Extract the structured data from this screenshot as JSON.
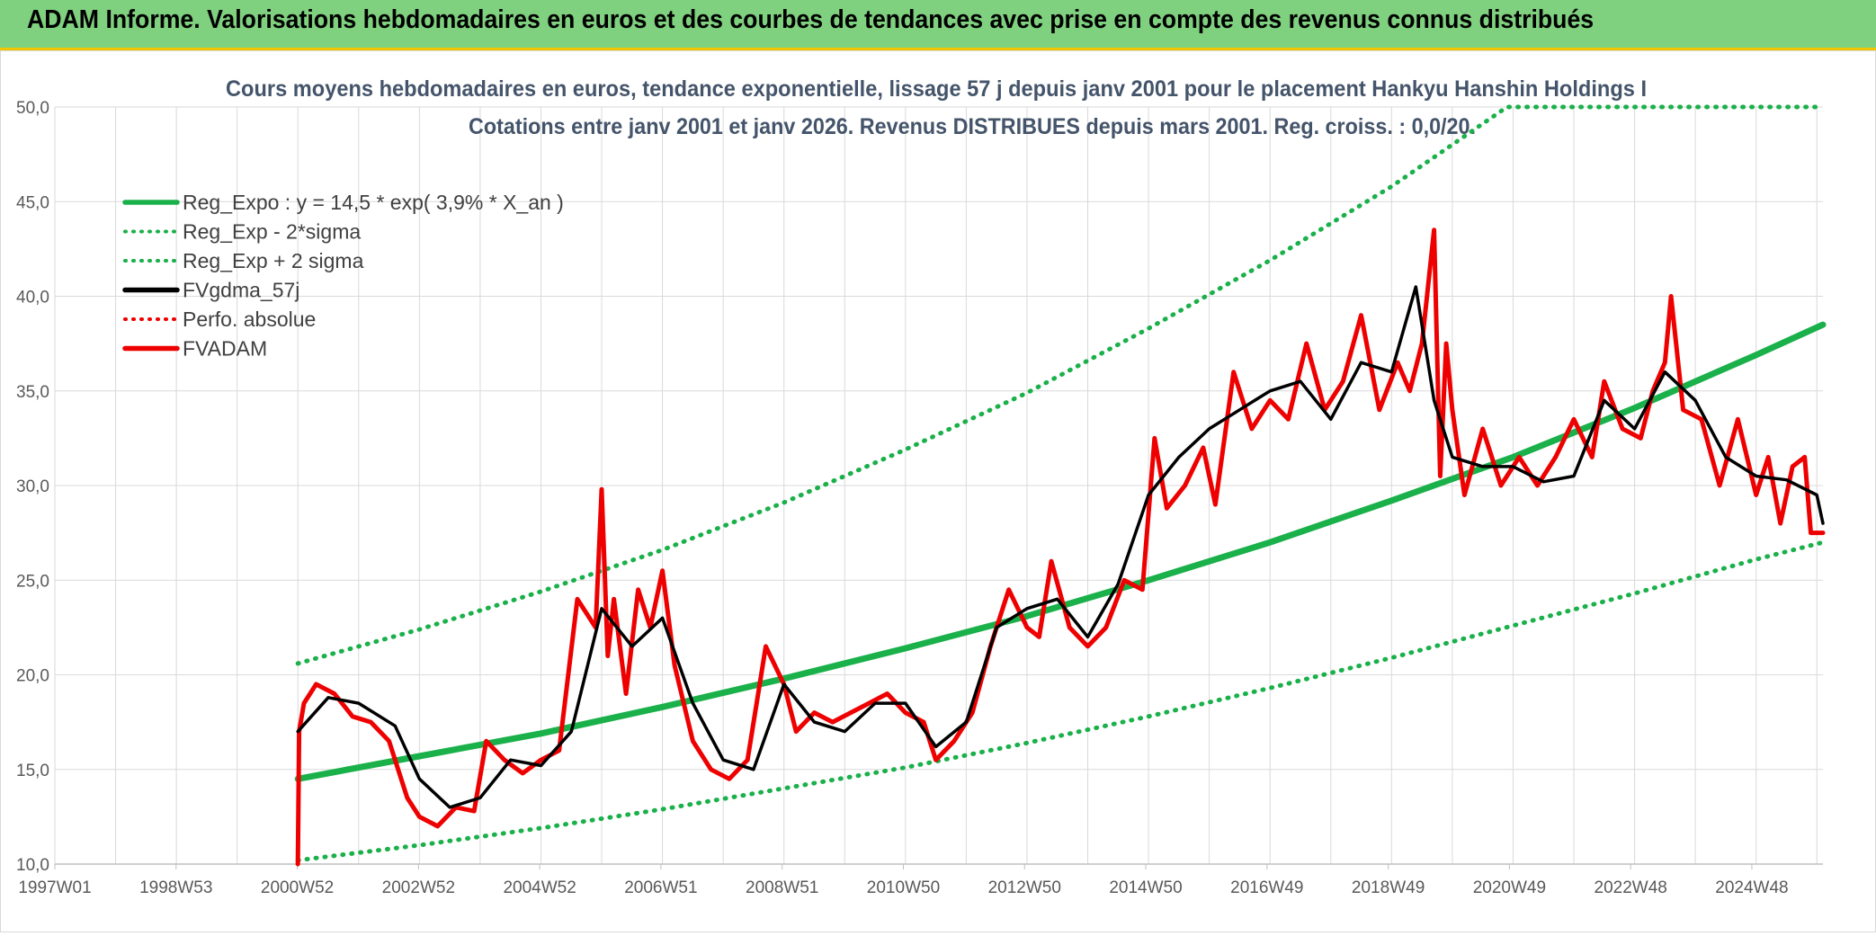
{
  "header": {
    "title": "ADAM Informe. Valorisations hebdomadaires en euros et des courbes de tendances avec prise en compte des revenus connus distribués"
  },
  "colors": {
    "banner": "#7fd07f",
    "banner_border": "#f3c400",
    "green": "#1ab04a",
    "red": "#ee0000",
    "black": "#000000",
    "grid": "#d9d9d9"
  },
  "chart_data": {
    "type": "line",
    "title": "Cours moyens hebdomadaires en euros, tendance exponentielle, lissage 57 j depuis janv 2001 pour le placement Hankyu Hanshin Holdings I",
    "subtitle": "Cotations entre janv 2001 et janv 2026. Revenus DISTRIBUES depuis mars 2001. Reg. croiss. : 0,0/20.",
    "xlabel": "",
    "ylabel": "",
    "x_tick_labels": [
      "1997W01",
      "1998W53",
      "2000W52",
      "2002W52",
      "2004W52",
      "2006W51",
      "2008W51",
      "2010W50",
      "2012W50",
      "2014W50",
      "2016W49",
      "2018W49",
      "2020W49",
      "2022W48",
      "2024W48"
    ],
    "x_range": [
      1997.0,
      2026.1
    ],
    "ylim": [
      10,
      50
    ],
    "y_ticks": [
      "10,0",
      "15,0",
      "20,0",
      "25,0",
      "30,0",
      "35,0",
      "40,0",
      "45,0",
      "50,0"
    ],
    "grid": true,
    "legend_position": "top-left",
    "legend": [
      {
        "label": "Reg_Expo : y = 14,5 * exp( 3,9% *  X_an )",
        "style": "solid",
        "color": "#1ab04a"
      },
      {
        "label": "Reg_Exp - 2*sigma",
        "style": "dotted",
        "color": "#1ab04a"
      },
      {
        "label": "Reg_Exp + 2 sigma",
        "style": "dotted",
        "color": "#1ab04a"
      },
      {
        "label": "FVgdma_57j",
        "style": "solid",
        "color": "#000000"
      },
      {
        "label": "Perfo. absolue",
        "style": "dotted",
        "color": "#ee0000"
      },
      {
        "label": "FVADAM",
        "style": "solid",
        "color": "#ee0000"
      }
    ],
    "series": [
      {
        "name": "Reg_Expo : y = 14,5 * exp( 3,9% *  X_an )",
        "x": [
          2001.0,
          2003.0,
          2005.0,
          2007.0,
          2009.0,
          2011.0,
          2013.0,
          2015.0,
          2017.0,
          2019.0,
          2021.0,
          2023.0,
          2025.0,
          2026.1
        ],
        "y": [
          14.5,
          15.7,
          16.9,
          18.3,
          19.8,
          21.4,
          23.1,
          25.0,
          27.0,
          29.2,
          31.5,
          34.1,
          36.9,
          38.5
        ]
      },
      {
        "name": "Reg_Exp - 2*sigma",
        "x": [
          2001.0,
          2003.0,
          2005.0,
          2007.0,
          2009.0,
          2011.0,
          2013.0,
          2015.0,
          2017.0,
          2019.0,
          2021.0,
          2023.0,
          2025.0,
          2026.1
        ],
        "y": [
          10.2,
          11.0,
          11.9,
          12.9,
          14.0,
          15.1,
          16.4,
          17.8,
          19.3,
          20.9,
          22.6,
          24.3,
          26.1,
          27.0
        ]
      },
      {
        "name": "Reg_Exp + 2 sigma",
        "x": [
          2001.0,
          2003.0,
          2005.0,
          2007.0,
          2009.0,
          2011.0,
          2013.0,
          2015.0,
          2017.0,
          2019.0,
          2020.9,
          2022.8,
          2026.1
        ],
        "y": [
          20.6,
          22.4,
          24.4,
          26.6,
          29.1,
          31.9,
          34.9,
          38.3,
          41.9,
          45.8,
          50.0,
          50.0,
          50.0
        ]
      },
      {
        "name": "FVgdma_57j",
        "x": [
          2001.0,
          2001.5,
          2002.0,
          2002.6,
          2003.0,
          2003.5,
          2004.0,
          2004.5,
          2005.0,
          2005.5,
          2006.0,
          2006.5,
          2007.0,
          2007.5,
          2008.0,
          2008.5,
          2009.0,
          2009.5,
          2010.0,
          2010.5,
          2011.0,
          2011.5,
          2012.0,
          2012.5,
          2013.0,
          2013.5,
          2014.0,
          2014.5,
          2015.0,
          2015.5,
          2016.0,
          2016.5,
          2017.0,
          2017.5,
          2018.0,
          2018.5,
          2019.0,
          2019.4,
          2019.7,
          2020.0,
          2020.5,
          2021.0,
          2021.5,
          2022.0,
          2022.5,
          2023.0,
          2023.5,
          2024.0,
          2024.5,
          2025.0,
          2025.5,
          2026.0,
          2026.1
        ],
        "y": [
          17.0,
          18.8,
          18.5,
          17.3,
          14.5,
          13.0,
          13.5,
          15.5,
          15.2,
          17.0,
          23.5,
          21.5,
          23.0,
          18.5,
          15.5,
          15.0,
          19.5,
          17.5,
          17.0,
          18.5,
          18.5,
          16.2,
          17.5,
          22.5,
          23.5,
          24.0,
          22.0,
          24.8,
          29.5,
          31.5,
          33.0,
          34.0,
          35.0,
          35.5,
          33.5,
          36.5,
          36.0,
          40.5,
          34.5,
          31.5,
          31.0,
          31.0,
          30.2,
          30.5,
          34.5,
          33.0,
          36.0,
          34.5,
          31.5,
          30.5,
          30.3,
          29.5,
          28.0
        ]
      },
      {
        "name": "FVADAM",
        "x": [
          2001.0,
          2001.02,
          2001.1,
          2001.3,
          2001.6,
          2001.9,
          2002.2,
          2002.5,
          2002.8,
          2003.0,
          2003.3,
          2003.6,
          2003.9,
          2004.1,
          2004.4,
          2004.7,
          2005.0,
          2005.3,
          2005.6,
          2005.9,
          2006.0,
          2006.1,
          2006.2,
          2006.4,
          2006.6,
          2006.8,
          2007.0,
          2007.2,
          2007.5,
          2007.8,
          2008.1,
          2008.4,
          2008.7,
          2009.0,
          2009.2,
          2009.5,
          2009.8,
          2010.1,
          2010.4,
          2010.7,
          2011.0,
          2011.3,
          2011.5,
          2011.8,
          2012.1,
          2012.4,
          2012.7,
          2013.0,
          2013.2,
          2013.4,
          2013.7,
          2014.0,
          2014.3,
          2014.6,
          2014.9,
          2015.1,
          2015.3,
          2015.6,
          2015.9,
          2016.1,
          2016.4,
          2016.7,
          2017.0,
          2017.3,
          2017.6,
          2017.9,
          2018.2,
          2018.5,
          2018.8,
          2019.1,
          2019.3,
          2019.5,
          2019.7,
          2019.8,
          2019.9,
          2020.0,
          2020.2,
          2020.5,
          2020.8,
          2021.1,
          2021.4,
          2021.7,
          2022.0,
          2022.3,
          2022.5,
          2022.8,
          2023.1,
          2023.3,
          2023.5,
          2023.6,
          2023.8,
          2024.1,
          2024.4,
          2024.7,
          2025.0,
          2025.2,
          2025.4,
          2025.6,
          2025.8,
          2025.9,
          2026.1
        ],
        "y": [
          10.0,
          17.0,
          18.5,
          19.5,
          19.0,
          17.8,
          17.5,
          16.5,
          13.5,
          12.5,
          12.0,
          13.0,
          12.8,
          16.5,
          15.5,
          14.8,
          15.5,
          16.0,
          24.0,
          22.5,
          29.8,
          21.0,
          24.0,
          19.0,
          24.5,
          22.5,
          25.5,
          20.5,
          16.5,
          15.0,
          14.5,
          15.5,
          21.5,
          19.5,
          17.0,
          18.0,
          17.5,
          18.0,
          18.5,
          19.0,
          18.0,
          17.5,
          15.5,
          16.5,
          18.0,
          21.5,
          24.5,
          22.5,
          22.0,
          26.0,
          22.5,
          21.5,
          22.5,
          25.0,
          24.5,
          32.5,
          28.8,
          30.0,
          32.0,
          29.0,
          36.0,
          33.0,
          34.5,
          33.5,
          37.5,
          34.0,
          35.5,
          39.0,
          34.0,
          36.5,
          35.0,
          37.5,
          43.5,
          30.5,
          37.5,
          34.0,
          29.5,
          33.0,
          30.0,
          31.5,
          30.0,
          31.5,
          33.5,
          31.5,
          35.5,
          33.0,
          32.5,
          35.0,
          36.5,
          40.0,
          34.0,
          33.5,
          30.0,
          33.5,
          29.5,
          31.5,
          28.0,
          31.0,
          31.5,
          27.5,
          27.5
        ]
      }
    ]
  }
}
